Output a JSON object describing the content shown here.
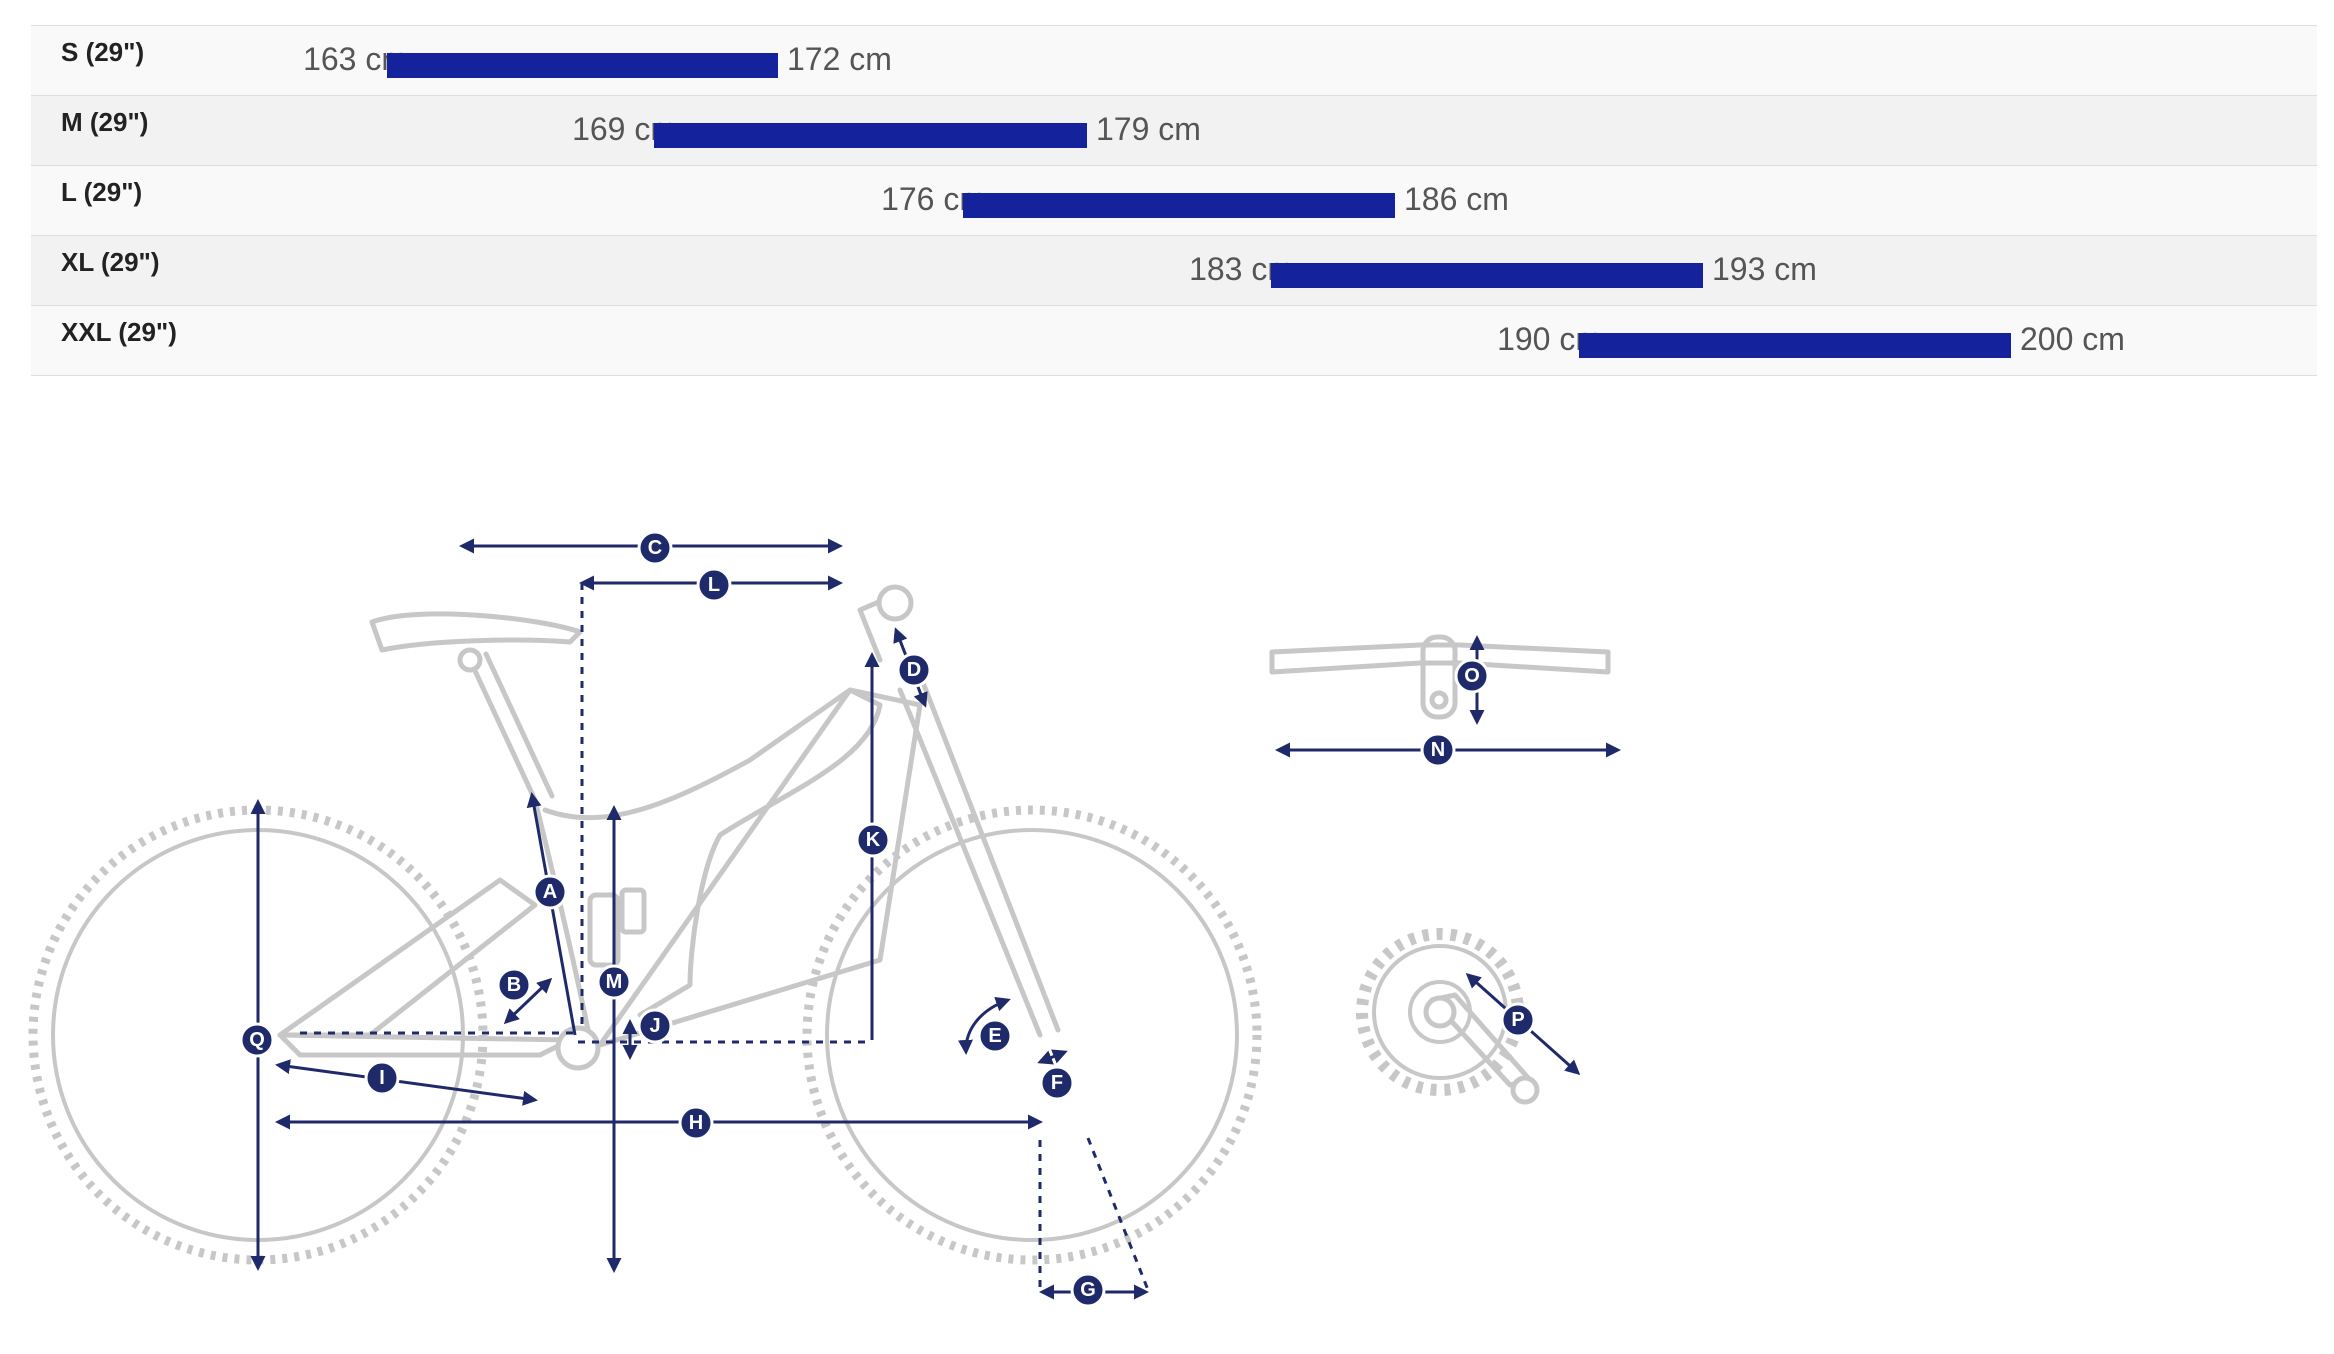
{
  "sizes": [
    {
      "label": "S (29\")",
      "min": "163 cm",
      "max": "172 cm"
    },
    {
      "label": "M (29\")",
      "min": "169 cm",
      "max": "179 cm"
    },
    {
      "label": "L (29\")",
      "min": "176 cm",
      "max": "186 cm"
    },
    {
      "label": "XL (29\")",
      "min": "183 cm",
      "max": "193 cm"
    },
    {
      "label": "XXL (29\")",
      "min": "190 cm",
      "max": "200 cm"
    }
  ],
  "colors": {
    "range_bar": "#14239b",
    "dimension": "#1f2a6b",
    "frame": "#c7c7c7"
  },
  "markers": [
    "A",
    "B",
    "C",
    "D",
    "E",
    "F",
    "G",
    "H",
    "I",
    "J",
    "K",
    "L",
    "M",
    "N",
    "O",
    "P",
    "Q"
  ]
}
